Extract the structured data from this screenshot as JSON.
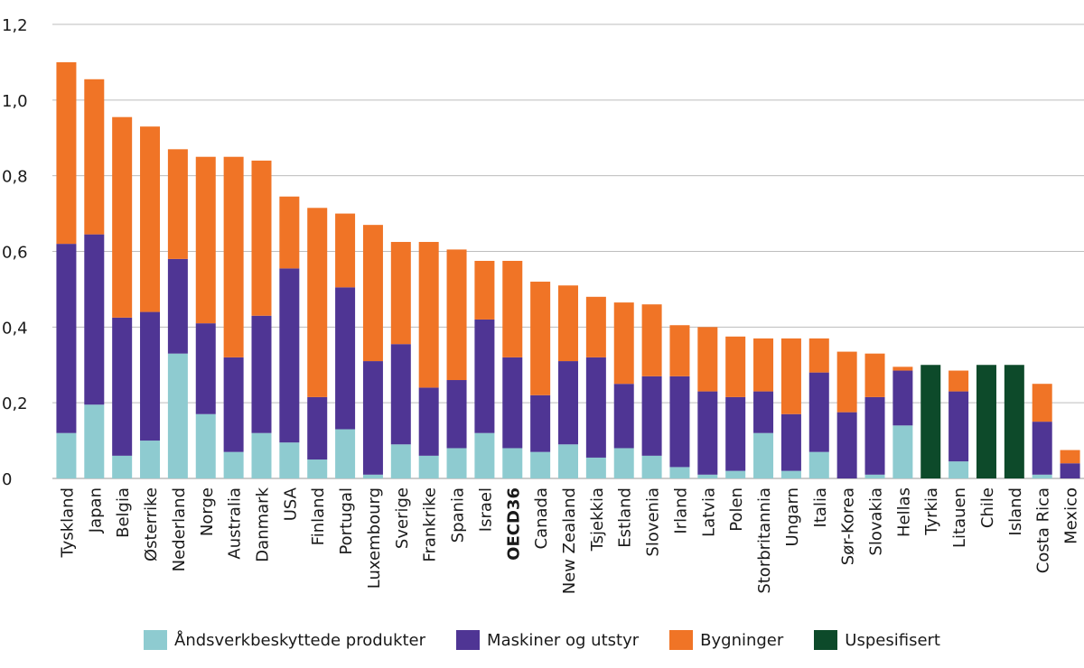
{
  "chart_data": {
    "type": "bar",
    "stacked": true,
    "title": "",
    "xlabel": "",
    "ylabel": "",
    "ylim": [
      0,
      1.2
    ],
    "yticks": [
      "0",
      "0,2",
      "0,4",
      "0,6",
      "0,8",
      "1,0",
      "1,2"
    ],
    "grid": true,
    "legend_placement": "bottom",
    "categories": [
      "Tyskland",
      "Japan",
      "Belgia",
      "Østerrike",
      "Nederland",
      "Norge",
      "Australia",
      "Danmark",
      "USA",
      "Finland",
      "Portugal",
      "Luxembourg",
      "Sverige",
      "Frankrike",
      "Spania",
      "Israel",
      "OECD36",
      "Canada",
      "New Zealand",
      "Tsjekkia",
      "Estland",
      "Slovenia",
      "Irland",
      "Latvia",
      "Polen",
      "Storbritannia",
      "Ungarn",
      "Italia",
      "Sør-Korea",
      "Slovakia",
      "Hellas",
      "Tyrkia",
      "Litauen",
      "Chile",
      "Island",
      "Costa Rica",
      "Mexico"
    ],
    "bold_categories": [
      "OECD36"
    ],
    "series": [
      {
        "name": "Åndsverkbeskyttede produkter",
        "color": "#8ecbd0",
        "values": [
          0.12,
          0.195,
          0.06,
          0.1,
          0.33,
          0.17,
          0.07,
          0.12,
          0.095,
          0.05,
          0.13,
          0.01,
          0.09,
          0.06,
          0.08,
          0.12,
          0.08,
          0.07,
          0.09,
          0.055,
          0.08,
          0.06,
          0.03,
          0.01,
          0.02,
          0.12,
          0.02,
          0.07,
          0,
          0.01,
          0.14,
          0,
          0.045,
          0,
          0,
          0.01,
          0
        ]
      },
      {
        "name": "Maskiner og utstyr",
        "color": "#4f3594",
        "values": [
          0.5,
          0.45,
          0.365,
          0.34,
          0.25,
          0.24,
          0.25,
          0.31,
          0.46,
          0.165,
          0.375,
          0.3,
          0.265,
          0.18,
          0.18,
          0.3,
          0.24,
          0.15,
          0.22,
          0.265,
          0.17,
          0.21,
          0.24,
          0.22,
          0.195,
          0.11,
          0.15,
          0.21,
          0.175,
          0.205,
          0.145,
          0,
          0.185,
          0,
          0,
          0.14,
          0.04
        ]
      },
      {
        "name": "Bygninger",
        "color": "#f07426",
        "values": [
          0.48,
          0.41,
          0.53,
          0.49,
          0.29,
          0.44,
          0.53,
          0.41,
          0.19,
          0.5,
          0.195,
          0.36,
          0.27,
          0.385,
          0.345,
          0.155,
          0.255,
          0.3,
          0.2,
          0.16,
          0.215,
          0.19,
          0.135,
          0.17,
          0.16,
          0.14,
          0.2,
          0.09,
          0.16,
          0.115,
          0.01,
          0,
          0.055,
          0,
          0,
          0.1,
          0.035
        ]
      },
      {
        "name": "Uspesifisert",
        "color": "#0d4a2a",
        "values": [
          0,
          0,
          0,
          0,
          0,
          0,
          0,
          0,
          0,
          0,
          0,
          0,
          0,
          0,
          0,
          0,
          0,
          0,
          0,
          0,
          0,
          0,
          0,
          0,
          0,
          0,
          0,
          0,
          0,
          0,
          0,
          0.3,
          0,
          0.3,
          0.3,
          0,
          0
        ]
      }
    ]
  }
}
